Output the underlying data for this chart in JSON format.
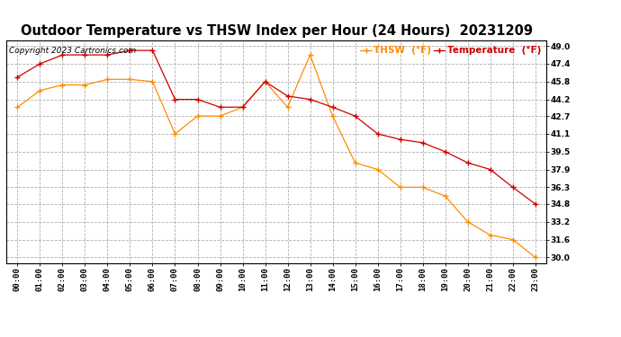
{
  "title": "Outdoor Temperature vs THSW Index per Hour (24 Hours)  20231209",
  "copyright": "Copyright 2023 Cartronics.com",
  "legend_thsw": "THSW  (°F)",
  "legend_temp": "Temperature  (°F)",
  "hours": [
    "00:00",
    "01:00",
    "02:00",
    "03:00",
    "04:00",
    "05:00",
    "06:00",
    "07:00",
    "08:00",
    "09:00",
    "10:00",
    "11:00",
    "12:00",
    "13:00",
    "14:00",
    "15:00",
    "16:00",
    "17:00",
    "18:00",
    "19:00",
    "20:00",
    "21:00",
    "22:00",
    "23:00"
  ],
  "temperature": [
    46.2,
    47.4,
    48.2,
    48.2,
    48.2,
    48.6,
    48.6,
    44.2,
    44.2,
    43.5,
    43.5,
    45.8,
    44.5,
    44.2,
    43.5,
    42.7,
    41.1,
    40.6,
    40.3,
    39.5,
    38.5,
    37.9,
    36.3,
    34.8
  ],
  "thsw": [
    43.5,
    45.0,
    45.5,
    45.5,
    46.0,
    46.0,
    45.8,
    41.1,
    42.7,
    42.7,
    43.5,
    45.8,
    43.5,
    48.2,
    42.7,
    38.5,
    37.9,
    36.3,
    36.3,
    35.5,
    33.2,
    32.0,
    31.6,
    30.0
  ],
  "thsw_color": "#FF8C00",
  "temp_color": "#CC0000",
  "ylim_min": 29.5,
  "ylim_max": 49.5,
  "yticks": [
    30.0,
    31.6,
    33.2,
    34.8,
    36.3,
    37.9,
    39.5,
    41.1,
    42.7,
    44.2,
    45.8,
    47.4,
    49.0
  ],
  "background_color": "#ffffff",
  "plot_bg_color": "#ffffff",
  "grid_color": "#b0b0b0",
  "title_fontsize": 10.5,
  "legend_fontsize": 7.5,
  "tick_fontsize": 6.5,
  "copyright_fontsize": 6.5
}
